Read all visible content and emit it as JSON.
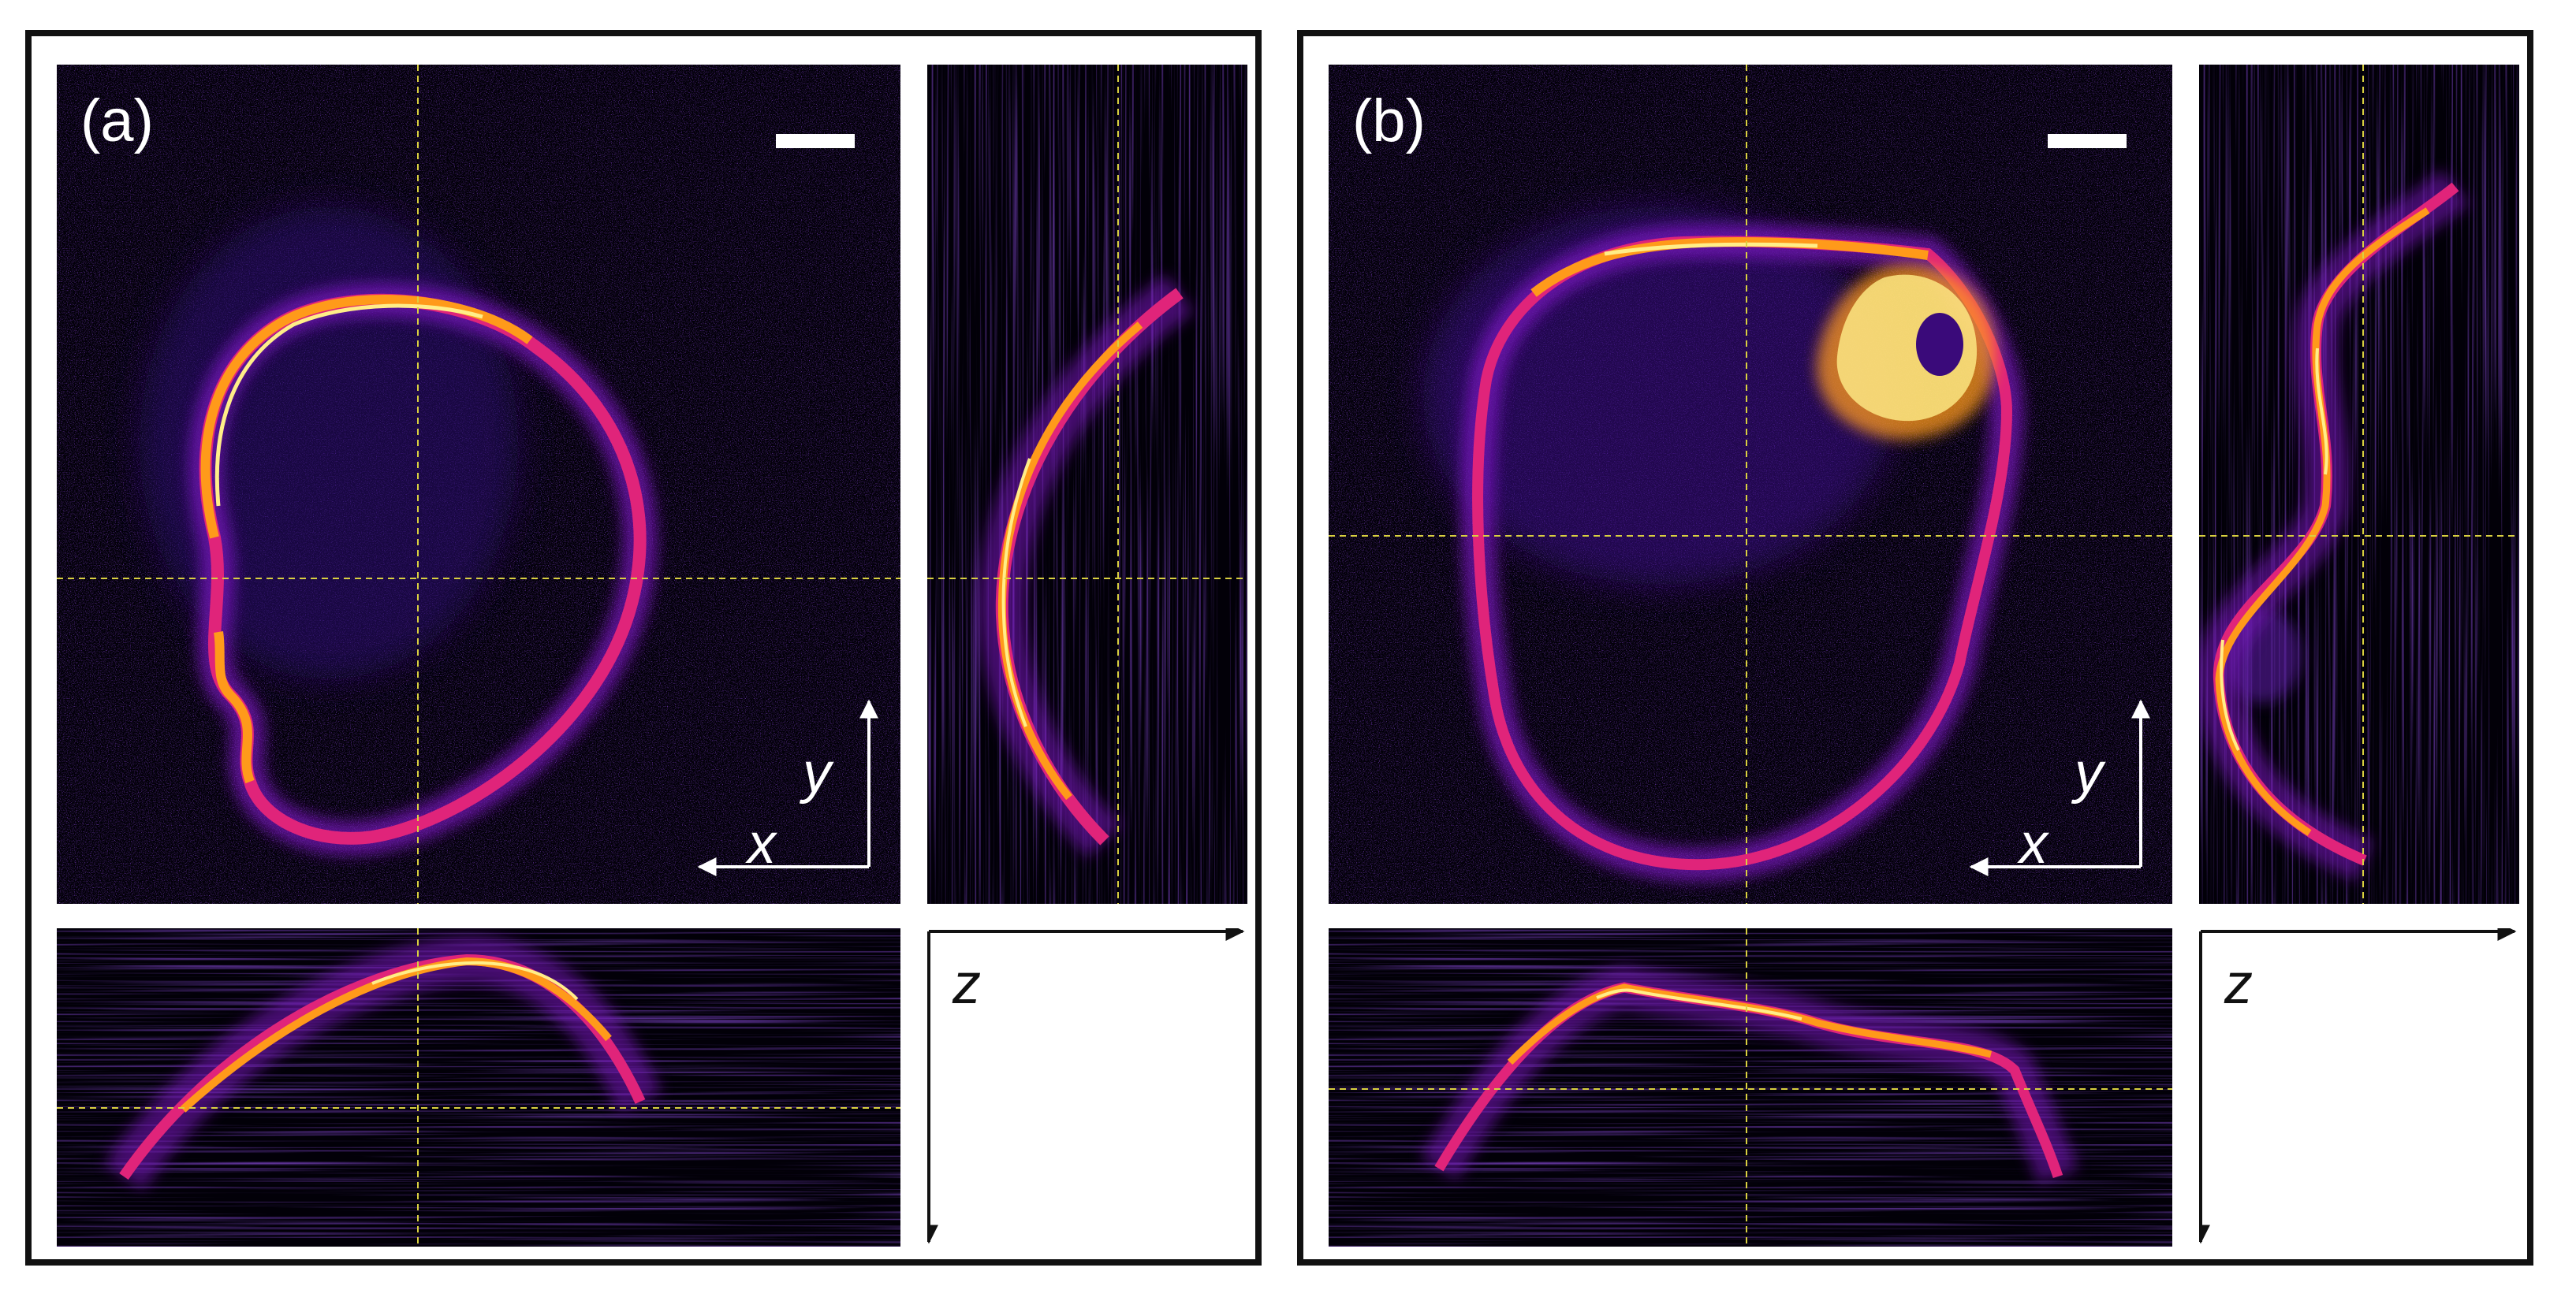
{
  "panels": [
    {
      "id": "a",
      "label": "(a)",
      "axes": {
        "x": "x",
        "y": "y",
        "z": "z"
      }
    },
    {
      "id": "b",
      "label": "(b)",
      "axes": {
        "x": "x",
        "y": "y",
        "z": "z"
      }
    }
  ],
  "colors": {
    "background": "#020008",
    "noise": "#2a0a6e",
    "outer_glow": "#6a0fb0",
    "mid": "#e0247a",
    "hot": "#ff9a1a",
    "core": "#ffee88",
    "crosshair": "#d9d040",
    "frame": "#111111",
    "annotation": "#ffffff"
  },
  "icons": [
    "scale-bar-icon",
    "x-axis-arrow-icon",
    "y-axis-arrow-icon",
    "z-axis-arrow-icon"
  ]
}
